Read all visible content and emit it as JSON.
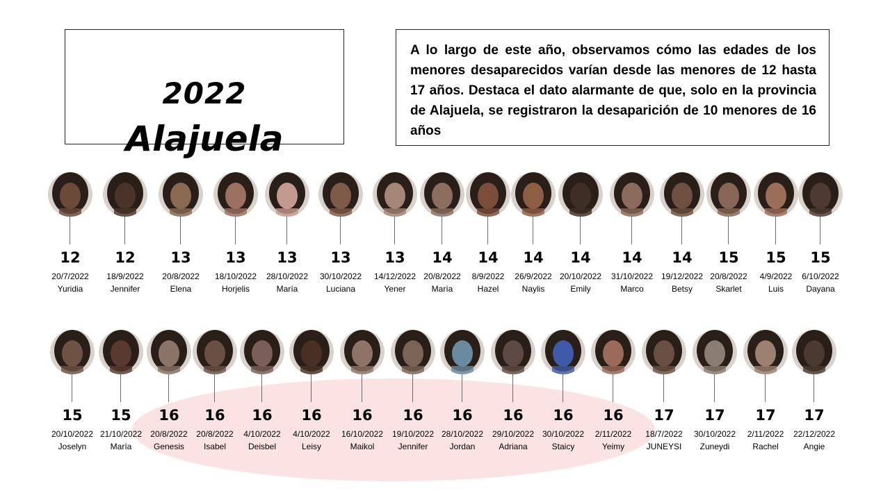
{
  "header": {
    "year": "2022",
    "province": "Alajuela"
  },
  "description": "A lo largo de este año, observamos cómo las edades de los menores desaparecidos varían desde las menores de 12 hasta 17 años. Destaca el dato alarmante de que, solo en la provincia de Alajuela, se registraron la desaparición de 10 menores de 16 años",
  "highlight_color": "#fbe3e3",
  "rows": [
    [
      {
        "age": "12",
        "date": "20/7/2022",
        "name": "Yuridia",
        "tone": "#6b4a3a"
      },
      {
        "age": "12",
        "date": "18/9/2022",
        "name": "Jennifer",
        "tone": "#4a3328"
      },
      {
        "age": "13",
        "date": "20/8/2022",
        "name": "Elena",
        "tone": "#8a6a52"
      },
      {
        "age": "13",
        "date": "18/10/2022",
        "name": "Horjelis",
        "tone": "#9a7060"
      },
      {
        "age": "13",
        "date": "28/10/2022",
        "name": "María",
        "tone": "#c49a8e"
      },
      {
        "age": "13",
        "date": "30/10/2022",
        "name": "Luciana",
        "tone": "#7e5a48"
      },
      {
        "age": "13",
        "date": "14/12/2022",
        "name": "Yener",
        "tone": "#a38676"
      },
      {
        "age": "14",
        "date": "20/8/2022",
        "name": "María",
        "tone": "#8c6e5e"
      },
      {
        "age": "14",
        "date": "8/9/2022",
        "name": "Hazel",
        "tone": "#7a4e3a"
      },
      {
        "age": "14",
        "date": "26/9/2022",
        "name": "Naylis",
        "tone": "#8e5e44"
      },
      {
        "age": "14",
        "date": "20/10/2022",
        "name": "Emily",
        "tone": "#3e2e26"
      },
      {
        "age": "14",
        "date": "31/10/2022",
        "name": "Marco",
        "tone": "#8a6a5a"
      },
      {
        "age": "14",
        "date": "19/12/2022",
        "name": "Betsy",
        "tone": "#6e5040"
      },
      {
        "age": "15",
        "date": "20/8/2022",
        "name": "Skarlet",
        "tone": "#8a6656"
      },
      {
        "age": "15",
        "date": "4/9/2022",
        "name": "Luis",
        "tone": "#9a6e58"
      },
      {
        "age": "15",
        "date": "6/10/2022",
        "name": "Dayana",
        "tone": "#4e3a30"
      }
    ],
    [
      {
        "age": "15",
        "date": "20/10/2022",
        "name": "Joselyn",
        "tone": "#6e5244"
      },
      {
        "age": "15",
        "date": "21/10/2022",
        "name": "María",
        "tone": "#5a3a30"
      },
      {
        "age": "16",
        "date": "20/8/2022",
        "name": "Genesis",
        "tone": "#8a7468"
      },
      {
        "age": "16",
        "date": "20/8/2022",
        "name": "Isabel",
        "tone": "#6a5044"
      },
      {
        "age": "16",
        "date": "4/10/2022",
        "name": "Deisbel",
        "tone": "#7a5e58"
      },
      {
        "age": "16",
        "date": "4/10/2022",
        "name": "Leisy",
        "tone": "#4a3024"
      },
      {
        "age": "16",
        "date": "16/10/2022",
        "name": "Maikol",
        "tone": "#8e7466"
      },
      {
        "age": "16",
        "date": "19/10/2022",
        "name": "Jennifer",
        "tone": "#7a6456"
      },
      {
        "age": "16",
        "date": "28/10/2022",
        "name": "Jordan",
        "tone": "#6a8aa0"
      },
      {
        "age": "16",
        "date": "29/10/2022",
        "name": "Adriana",
        "tone": "#5e4a44"
      },
      {
        "age": "16",
        "date": "30/10/2022",
        "name": "Staicy",
        "tone": "#3e5aa8"
      },
      {
        "age": "16",
        "date": "2/11/2022",
        "name": "Yeimy",
        "tone": "#9a6a5a"
      },
      {
        "age": "17",
        "date": "18/7/2022",
        "name": "JUNEYSI",
        "tone": "#6a5044"
      },
      {
        "age": "17",
        "date": "30/10/2022",
        "name": "Zuneydi",
        "tone": "#8a7e74"
      },
      {
        "age": "17",
        "date": "2/11/2022",
        "name": "Rachel",
        "tone": "#9c8070"
      },
      {
        "age": "17",
        "date": "22/12/2022",
        "name": "Angie",
        "tone": "#4a3a30"
      }
    ]
  ]
}
